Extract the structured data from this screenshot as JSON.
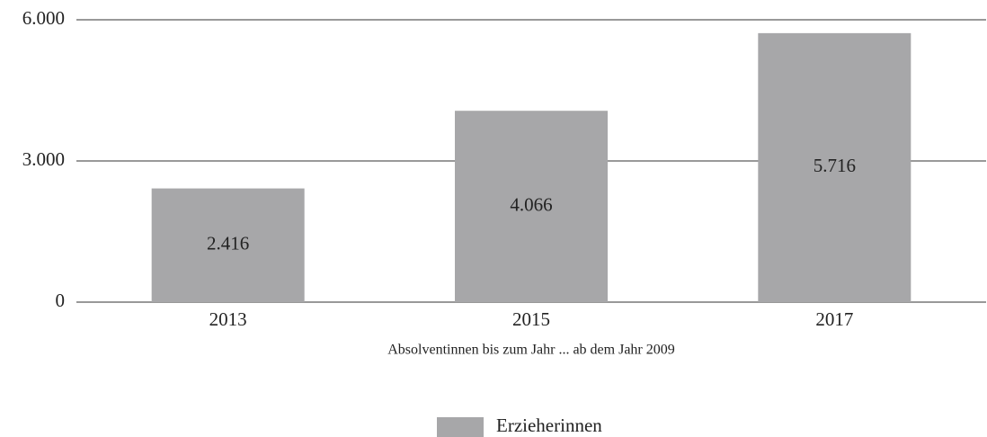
{
  "chart_data": {
    "type": "bar",
    "categories": [
      "2013",
      "2015",
      "2017"
    ],
    "series": [
      {
        "name": "Erzieherinnen",
        "color": "#a7a7a9",
        "values": [
          2416,
          4066,
          5716
        ],
        "value_labels": [
          "2.416",
          "4.066",
          "5.716"
        ]
      }
    ],
    "xlabel": "Absolventinnen bis zum Jahr ... ab dem Jahr 2009",
    "ylim": [
      0,
      6000
    ],
    "yticks": [
      0,
      {
        "value": 3000,
        "label": "3.000"
      },
      {
        "value": 6000,
        "label": "6.000"
      }
    ],
    "grid": true,
    "legend": "bottom"
  }
}
